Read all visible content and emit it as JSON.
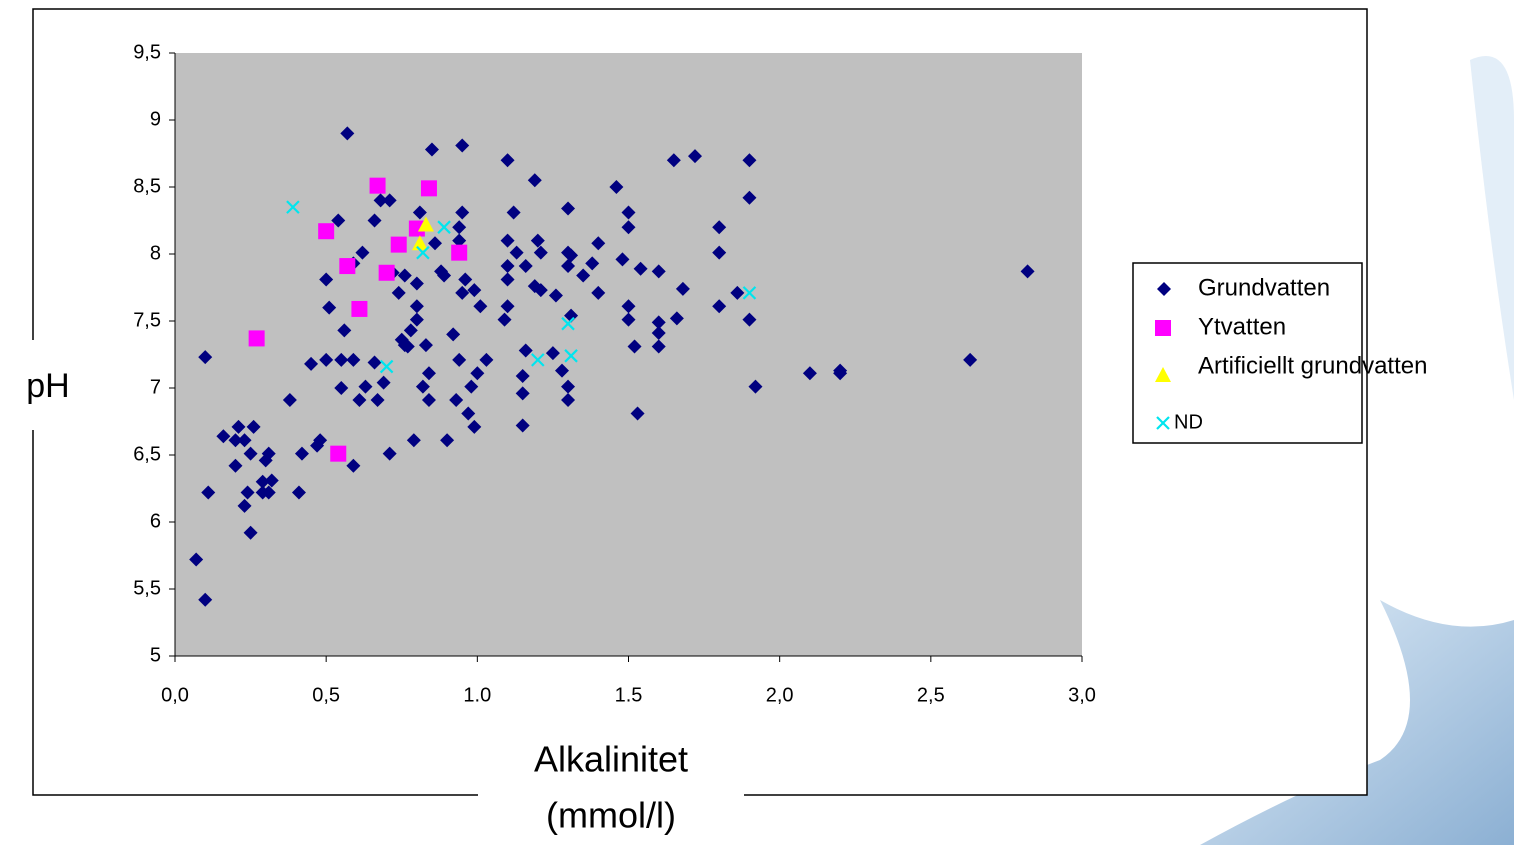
{
  "chart_data": {
    "type": "scatter",
    "xlabel": [
      "Alkalinitet",
      "(mmol/l)"
    ],
    "ylabel": "pH",
    "xlim": [
      0,
      3
    ],
    "ylim": [
      5,
      9.5
    ],
    "xticks": [
      {
        "value": 0,
        "label": "0,0"
      },
      {
        "value": 0.5,
        "label": "0,5"
      },
      {
        "value": 1,
        "label": "1.0"
      },
      {
        "value": 1.5,
        "label": "1.5"
      },
      {
        "value": 2,
        "label": "2,0"
      },
      {
        "value": 2.5,
        "label": "2,5"
      },
      {
        "value": 3,
        "label": "3,0"
      }
    ],
    "yticks": [
      5,
      {
        "value": 5.5,
        "label": "5,5"
      },
      6,
      {
        "value": 6.5,
        "label": "6,5"
      },
      7,
      {
        "value": 7.5,
        "label": "7,5"
      },
      8,
      {
        "value": 8.5,
        "label": "8,5"
      },
      9,
      {
        "value": 9.5,
        "label": "9,5"
      }
    ],
    "grid": false,
    "legend": "right",
    "series": [
      {
        "name": "Grundvatten",
        "color": "#000080",
        "marker": "diamond",
        "x": [
          0.07,
          0.1,
          0.1,
          0.11,
          0.16,
          0.2,
          0.21,
          0.2,
          0.23,
          0.23,
          0.24,
          0.25,
          0.25,
          0.26,
          0.29,
          0.29,
          0.3,
          0.31,
          0.31,
          0.32,
          0.38,
          0.41,
          0.42,
          0.45,
          0.47,
          0.48,
          0.5,
          0.5,
          0.51,
          0.54,
          0.55,
          0.55,
          0.56,
          0.57,
          0.59,
          0.59,
          0.59,
          0.61,
          0.62,
          0.63,
          0.66,
          0.66,
          0.67,
          0.68,
          0.69,
          0.71,
          0.71,
          0.72,
          0.74,
          0.75,
          0.76,
          0.76,
          0.77,
          0.78,
          0.79,
          0.8,
          0.8,
          0.8,
          0.81,
          0.82,
          0.83,
          0.84,
          0.84,
          0.85,
          0.86,
          0.88,
          0.89,
          0.9,
          0.92,
          0.93,
          0.94,
          0.94,
          0.94,
          0.95,
          0.95,
          0.95,
          0.96,
          0.97,
          0.98,
          0.99,
          0.99,
          1.0,
          1.01,
          1.03,
          1.1,
          1.1,
          1.1,
          1.1,
          1.09,
          1.1,
          1.12,
          1.13,
          1.15,
          1.15,
          1.15,
          1.16,
          1.16,
          1.19,
          1.2,
          1.19,
          1.21,
          1.21,
          1.25,
          1.26,
          1.28,
          1.3,
          1.3,
          1.3,
          1.31,
          1.3,
          1.3,
          1.31,
          1.35,
          1.38,
          1.4,
          1.4,
          1.46,
          1.48,
          1.5,
          1.5,
          1.5,
          1.5,
          1.52,
          1.53,
          1.54,
          1.6,
          1.6,
          1.6,
          1.6,
          1.65,
          1.66,
          1.68,
          1.72,
          1.8,
          1.8,
          1.8,
          1.86,
          1.9,
          1.9,
          1.9,
          1.92,
          2.1,
          2.2,
          2.2,
          2.63,
          2.82
        ],
        "values": [
          5.72,
          5.42,
          7.23,
          6.22,
          6.64,
          6.61,
          6.71,
          6.42,
          6.61,
          6.12,
          6.22,
          5.92,
          6.51,
          6.71,
          6.3,
          6.22,
          6.46,
          6.22,
          6.51,
          6.31,
          6.91,
          6.22,
          6.51,
          7.18,
          6.57,
          6.61,
          7.21,
          7.81,
          7.6,
          8.25,
          7.21,
          7.0,
          7.43,
          8.9,
          7.93,
          7.21,
          6.42,
          6.91,
          8.01,
          7.01,
          8.25,
          7.19,
          6.91,
          8.4,
          7.04,
          8.4,
          6.51,
          7.86,
          7.71,
          7.36,
          7.84,
          7.32,
          7.31,
          7.43,
          6.61,
          7.61,
          7.51,
          7.78,
          8.31,
          7.01,
          7.32,
          6.91,
          7.11,
          8.78,
          8.08,
          7.87,
          7.84,
          6.61,
          7.4,
          6.91,
          7.21,
          8.2,
          8.1,
          8.81,
          8.31,
          7.71,
          7.81,
          6.81,
          7.01,
          7.73,
          6.71,
          7.11,
          7.61,
          7.21,
          8.7,
          8.1,
          7.91,
          7.81,
          7.51,
          7.61,
          8.31,
          8.01,
          7.09,
          6.72,
          6.96,
          7.28,
          7.91,
          8.55,
          8.1,
          7.76,
          7.73,
          8.01,
          7.26,
          7.69,
          7.13,
          8.34,
          8.01,
          7.91,
          7.54,
          7.01,
          6.91,
          7.99,
          7.84,
          7.93,
          8.08,
          7.71,
          8.5,
          7.96,
          8.31,
          8.2,
          7.61,
          7.51,
          7.31,
          6.81,
          7.89,
          7.87,
          7.49,
          7.41,
          7.31,
          8.7,
          7.52,
          7.74,
          8.73,
          8.2,
          8.01,
          7.61,
          7.71,
          8.7,
          8.42,
          7.51,
          7.01,
          7.11,
          7.11,
          7.13,
          7.21,
          7.87
        ]
      },
      {
        "name": "Ytvatten",
        "color": "#ff00ff",
        "marker": "square",
        "x": [
          0.27,
          0.5,
          0.54,
          0.57,
          0.61,
          0.67,
          0.7,
          0.74,
          0.8,
          0.84,
          0.94
        ],
        "values": [
          7.37,
          8.17,
          6.51,
          7.91,
          7.59,
          8.51,
          7.86,
          8.07,
          8.19,
          8.49,
          8.01
        ]
      },
      {
        "name": "Artificiellt grundvatten",
        "color": "#ffff00",
        "marker": "triangle",
        "x": [
          0.83,
          0.81
        ],
        "values": [
          8.22,
          8.08
        ]
      },
      {
        "name": "ND",
        "color": "#00e5ee",
        "marker": "x",
        "x": [
          0.39,
          0.7,
          0.82,
          0.89,
          1.2,
          1.3,
          1.31,
          1.9
        ],
        "values": [
          8.35,
          7.16,
          8.01,
          8.2,
          7.21,
          7.48,
          7.24,
          7.71
        ]
      }
    ]
  }
}
